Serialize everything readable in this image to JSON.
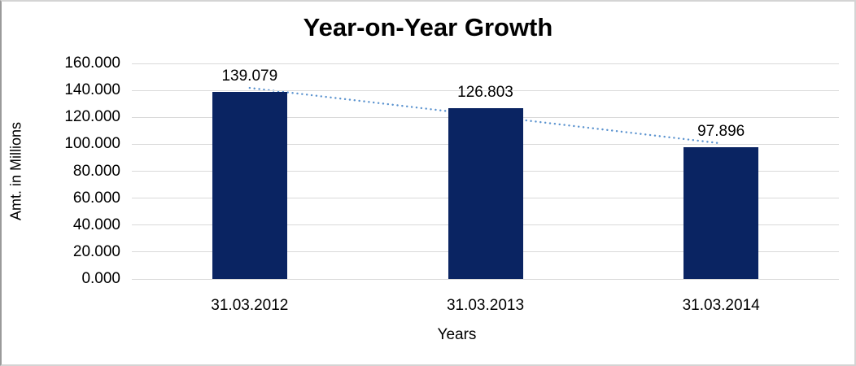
{
  "chart_data": {
    "type": "bar",
    "title": "Year-on-Year Growth",
    "xlabel": "Years",
    "ylabel": "Amt. in Millions",
    "categories": [
      "31.03.2012",
      "31.03.2013",
      "31.03.2014"
    ],
    "values": [
      139.079,
      126.803,
      97.896
    ],
    "data_labels": [
      "139.079",
      "126.803",
      "97.896"
    ],
    "ylim": [
      0,
      160
    ],
    "ytick_step": 20,
    "ytick_labels": [
      "0.000",
      "20.000",
      "40.000",
      "60.000",
      "80.000",
      "100.000",
      "120.000",
      "140.000",
      "160.000"
    ],
    "grid": true,
    "legend_position": "none",
    "trendline": {
      "type": "linear",
      "style": "dotted"
    },
    "colors": {
      "bar": "#0a2462",
      "trendline": "#5b93cf",
      "gridline": "#d9d9d9",
      "text": "#000000",
      "background": "#ffffff"
    }
  }
}
